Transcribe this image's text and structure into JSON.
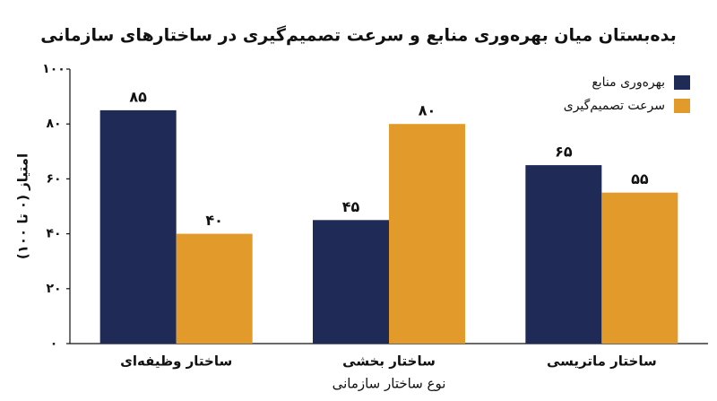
{
  "chart_data": {
    "type": "bar",
    "title": "بده‌بستان میان بهره‌وری منابع و سرعت تصمیم‌گیری در ساختارهای سازمانی",
    "x_label": "نوع ساختار سازمانی",
    "y_label": "امتیاز (۰ تا ۱۰۰)",
    "categories": [
      "ساختار وظیفه‌ای",
      "ساختار بخشی",
      "ساختار ماتریسی"
    ],
    "series": [
      {
        "name": "بهره‌وری منابع",
        "color": "#1f2a56",
        "values": [
          85,
          45,
          65
        ],
        "value_labels": [
          "۸۵",
          "۴۵",
          "۶۵"
        ]
      },
      {
        "name": "سرعت تصمیم‌گیری",
        "color": "#e29b2a",
        "values": [
          40,
          80,
          55
        ],
        "value_labels": [
          "۴۰",
          "۸۰",
          "۵۵"
        ]
      }
    ],
    "ylim": [
      0,
      100
    ],
    "yticks": [
      {
        "value": 0,
        "label": "۰"
      },
      {
        "value": 20,
        "label": "۲۰"
      },
      {
        "value": 40,
        "label": "۴۰"
      },
      {
        "value": 60,
        "label": "۶۰"
      },
      {
        "value": 80,
        "label": "۸۰"
      },
      {
        "value": 100,
        "label": "۱۰۰"
      }
    ],
    "grid": false,
    "legend": "upper right"
  }
}
